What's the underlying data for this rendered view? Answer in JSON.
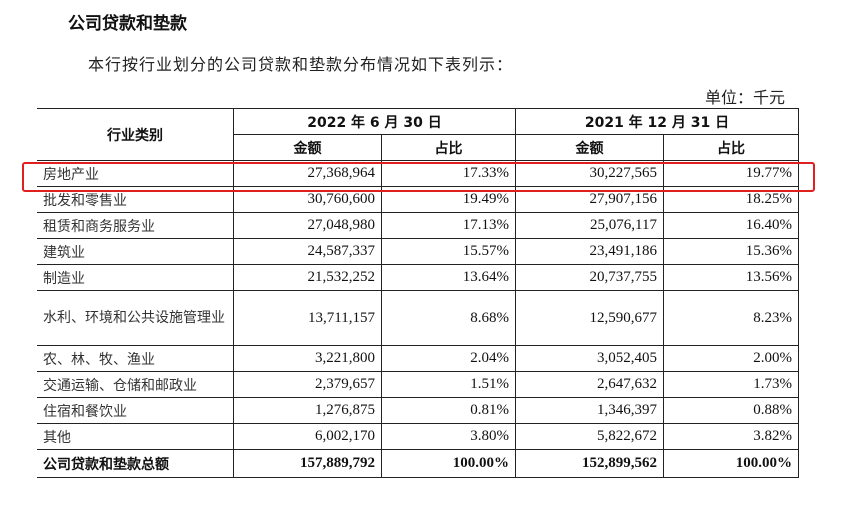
{
  "title": "公司贷款和垫款",
  "intro": "本行按行业划分的公司贷款和垫款分布情况如下表列示：",
  "unit": "单位：千元",
  "header": {
    "category": "行业类别",
    "period1": "2022 年 6 月 30 日",
    "period2": "2021 年 12 月 31 日",
    "amount": "金额",
    "ratio": "占比"
  },
  "rows": [
    {
      "name": "房地产业",
      "a1": "27,368,964",
      "r1": "17.33%",
      "a2": "30,227,565",
      "r2": "19.77%"
    },
    {
      "name": "批发和零售业",
      "a1": "30,760,600",
      "r1": "19.49%",
      "a2": "27,907,156",
      "r2": "18.25%"
    },
    {
      "name": "租赁和商务服务业",
      "a1": "27,048,980",
      "r1": "17.13%",
      "a2": "25,076,117",
      "r2": "16.40%"
    },
    {
      "name": "建筑业",
      "a1": "24,587,337",
      "r1": "15.57%",
      "a2": "23,491,186",
      "r2": "15.36%"
    },
    {
      "name": "制造业",
      "a1": "21,532,252",
      "r1": "13.64%",
      "a2": "20,737,755",
      "r2": "13.56%"
    },
    {
      "name": "水利、环境和公共设施管理业",
      "a1": "13,711,157",
      "r1": "8.68%",
      "a2": "12,590,677",
      "r2": "8.23%"
    },
    {
      "name": "农、林、牧、渔业",
      "a1": "3,221,800",
      "r1": "2.04%",
      "a2": "3,052,405",
      "r2": "2.00%"
    },
    {
      "name": "交通运输、仓储和邮政业",
      "a1": "2,379,657",
      "r1": "1.51%",
      "a2": "2,647,632",
      "r2": "1.73%"
    },
    {
      "name": "住宿和餐饮业",
      "a1": "1,276,875",
      "r1": "0.81%",
      "a2": "1,346,397",
      "r2": "0.88%"
    },
    {
      "name": "其他",
      "a1": "6,002,170",
      "r1": "3.80%",
      "a2": "5,822,672",
      "r2": "3.82%"
    }
  ],
  "total": {
    "name": "公司贷款和垫款总额",
    "a1": "157,889,792",
    "r1": "100.00%",
    "a2": "152,899,562",
    "r2": "100.00%"
  },
  "highlight_color": "#e0201e"
}
